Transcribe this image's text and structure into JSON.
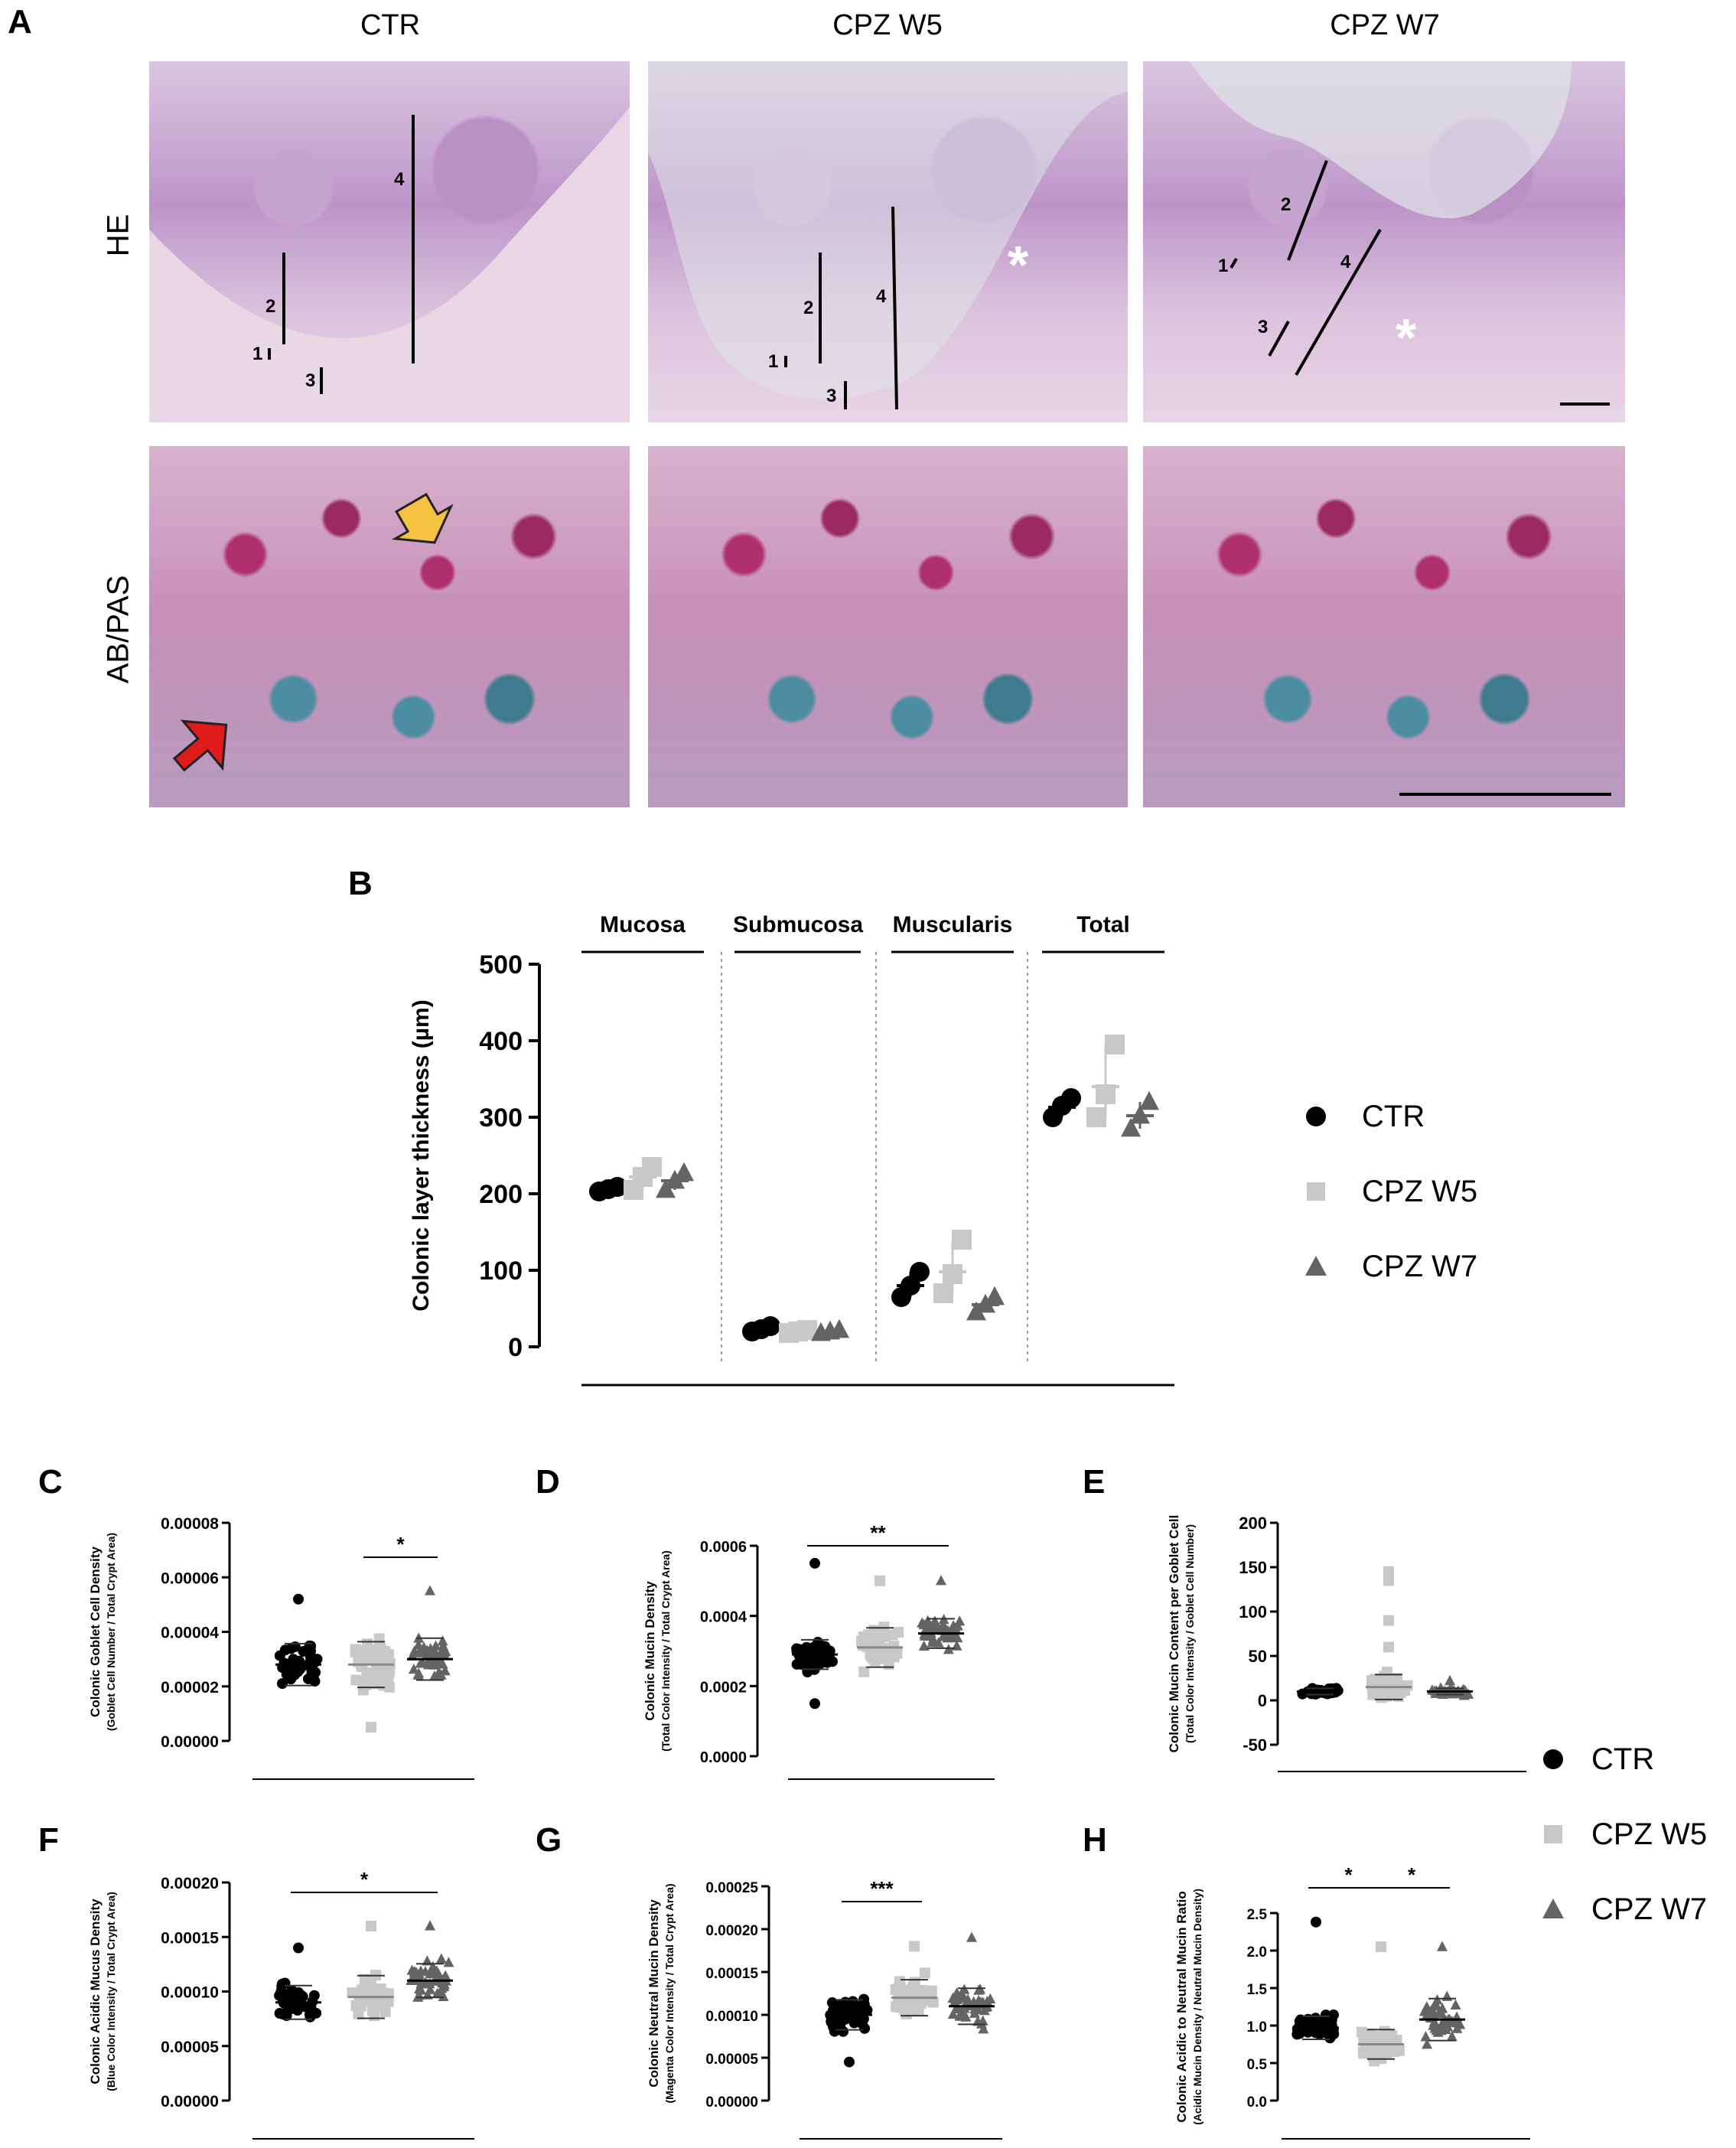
{
  "panels": {
    "A": "A",
    "B": "B",
    "C": "C",
    "D": "D",
    "E": "E",
    "F": "F",
    "G": "G",
    "H": "H"
  },
  "panel_a": {
    "columns": [
      "CTR",
      "CPZ W5",
      "CPZ W7"
    ],
    "rows": [
      "HE",
      "AB/PAS"
    ],
    "he_marks": {
      "ctr": [
        "4",
        "2",
        "1",
        "3"
      ],
      "w5": [
        "2",
        "4",
        "1",
        "3",
        "*"
      ],
      "w7": [
        "2",
        "1",
        "4",
        "3",
        "*"
      ]
    }
  },
  "colors": {
    "ctr": "#000000",
    "w5": "#c8c8c8",
    "w7": "#646464",
    "arrow_yellow": "#f5c242",
    "arrow_red": "#e01b1b"
  },
  "legend": [
    "CTR",
    "CPZ W5",
    "CPZ W7"
  ],
  "chart_data": [
    {
      "id": "B",
      "type": "scatter",
      "ylabel": "Colonic layer thickness (µm)",
      "groups": [
        "Mucosa",
        "Submucosa",
        "Muscularis",
        "Total"
      ],
      "yticks": [
        "0",
        "100",
        "200",
        "300",
        "400",
        "500"
      ],
      "ylim": [
        0,
        500
      ],
      "series": [
        {
          "name": "CTR",
          "means": [
            206,
            23,
            80,
            313
          ],
          "points": [
            [
              203,
              206,
              209
            ],
            [
              20,
              23,
              27
            ],
            [
              65,
              80,
              98
            ],
            [
              300,
              315,
              325
            ]
          ]
        },
        {
          "name": "CPZ W5",
          "means": [
            222,
            20,
            98,
            340
          ],
          "points": [
            [
              205,
              222,
              235
            ],
            [
              18,
              20,
              22
            ],
            [
              70,
              95,
              140
            ],
            [
              300,
              330,
              395
            ]
          ]
        },
        {
          "name": "CPZ W7",
          "means": [
            217,
            20,
            55,
            302
          ],
          "points": [
            [
              205,
              217,
              227
            ],
            [
              18,
              20,
              22
            ],
            [
              45,
              55,
              65
            ],
            [
              285,
              302,
              320
            ]
          ]
        }
      ]
    },
    {
      "id": "C",
      "type": "scatter",
      "ylabel": "Colonic Goblet Cell Density",
      "ylabel2": "(Goblet Cell Number / Total Crypt Area)",
      "yticks": [
        "0.00000",
        "0.00002",
        "0.00004",
        "0.00006",
        "0.00008"
      ],
      "ylim": [
        0,
        8e-05
      ],
      "means": [
        2.8e-05,
        2.8e-05,
        3e-05
      ],
      "sig": [
        {
          "from": 1,
          "to": 2,
          "label": "*"
        }
      ]
    },
    {
      "id": "D",
      "type": "scatter",
      "ylabel": "Colonic Mucin Density",
      "ylabel2": "(Total Color Intensity / Total Crypt Area)",
      "yticks": [
        "0.0000",
        "0.0002",
        "0.0004",
        "0.0006"
      ],
      "ylim": [
        0,
        0.0006
      ],
      "means": [
        0.00029,
        0.00031,
        0.00035
      ],
      "sig": [
        {
          "from": 0,
          "to": 2,
          "label": "**"
        }
      ]
    },
    {
      "id": "E",
      "type": "scatter",
      "ylabel": "Colonic Mucin Content per Goblet Cell",
      "ylabel2": "(Total Color Intensity / Goblet Cell Number)",
      "yticks": [
        "-50",
        "0",
        "50",
        "100",
        "150",
        "200"
      ],
      "ylim": [
        -50,
        200
      ],
      "means": [
        10,
        15,
        10
      ],
      "sig": []
    },
    {
      "id": "F",
      "type": "scatter",
      "ylabel": "Colonic Acidic Mucus Density",
      "ylabel2": "(Blue Color Intensity / Total Crypt Area)",
      "yticks": [
        "0.00000",
        "0.00005",
        "0.00010",
        "0.00015",
        "0.00020"
      ],
      "ylim": [
        0,
        0.0002
      ],
      "means": [
        9e-05,
        9.5e-05,
        0.00011
      ],
      "sig": [
        {
          "from": 0,
          "to": 2,
          "label": "*"
        }
      ]
    },
    {
      "id": "G",
      "type": "scatter",
      "ylabel": "Colonic Neutral Mucin Density",
      "ylabel2": "(Magenta Color Intensity / Total Crypt Area)",
      "yticks": [
        "0.00000",
        "0.00005",
        "0.00010",
        "0.00015",
        "0.00020",
        "0.00025"
      ],
      "ylim": [
        0,
        0.00025
      ],
      "means": [
        0.0001,
        0.00012,
        0.00011
      ],
      "sig": [
        {
          "from": 0,
          "to": 1,
          "label": "***"
        }
      ]
    },
    {
      "id": "H",
      "type": "scatter",
      "ylabel": "Colonic Acidic to Neutral Mucin Ratio",
      "ylabel2": "(Acidic Mucin Density / Neutral Mucin Density)",
      "yticks": [
        "0.0",
        "0.5",
        "1.0",
        "1.5",
        "2.0",
        "2.5"
      ],
      "ylim": [
        0,
        2.5
      ],
      "means": [
        0.97,
        0.75,
        1.08
      ],
      "sig": [
        {
          "from": 0,
          "to": 1,
          "label": "*"
        },
        {
          "from": 1,
          "to": 2,
          "label": "*"
        }
      ]
    }
  ]
}
